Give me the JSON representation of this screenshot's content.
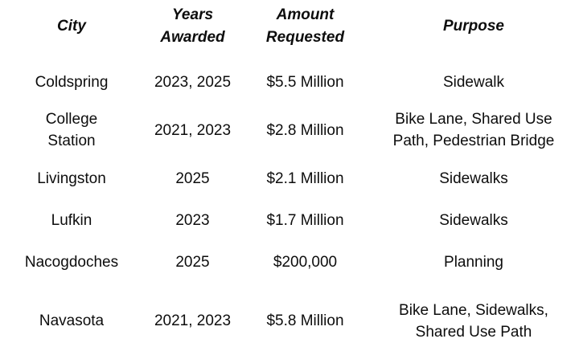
{
  "chart_data": {
    "type": "table",
    "title": "",
    "columns": [
      "City",
      "Years Awarded",
      "Amount Requested",
      "Purpose"
    ],
    "rows": [
      {
        "city": "Coldspring",
        "years_awarded": "2023, 2025",
        "amount_requested": "$5.5 Million",
        "purpose": "Sidewalk"
      },
      {
        "city": "College Station",
        "years_awarded": "2021, 2023",
        "amount_requested": "$2.8 Million",
        "purpose": "Bike Lane, Shared Use Path, Pedestrian Bridge"
      },
      {
        "city": "Livingston",
        "years_awarded": "2025",
        "amount_requested": "$2.1 Million",
        "purpose": "Sidewalks"
      },
      {
        "city": "Lufkin",
        "years_awarded": "2023",
        "amount_requested": "$1.7 Million",
        "purpose": "Sidewalks"
      },
      {
        "city": "Nacogdoches",
        "years_awarded": "2025",
        "amount_requested": "$200,000",
        "purpose": "Planning"
      },
      {
        "city": "Navasota",
        "years_awarded": "2021, 2023",
        "amount_requested": "$5.8 Million",
        "purpose": "Bike Lane, Sidewalks, Shared Use Path"
      }
    ],
    "layout_hints": {
      "borders": "none",
      "header_style": "bold italic",
      "alignment": "center",
      "text_color": "#0d0d0d",
      "background_color": "#ffffff"
    }
  },
  "table": {
    "headers": {
      "city": "City",
      "years": "Years\nAwarded",
      "amount": "Amount\nRequested",
      "purpose": "Purpose"
    },
    "rows": [
      {
        "city": "Coldspring",
        "years": "2023, 2025",
        "amount": "$5.5 Million",
        "purpose": "Sidewalk"
      },
      {
        "city": "College\nStation",
        "years": "2021, 2023",
        "amount": "$2.8 Million",
        "purpose": "Bike Lane, Shared Use\nPath, Pedestrian Bridge"
      },
      {
        "city": "Livingston",
        "years": "2025",
        "amount": "$2.1 Million",
        "purpose": "Sidewalks"
      },
      {
        "city": "Lufkin",
        "years": "2023",
        "amount": "$1.7 Million",
        "purpose": "Sidewalks"
      },
      {
        "city": "Nacogdoches",
        "years": "2025",
        "amount": "$200,000",
        "purpose": "Planning"
      },
      {
        "city": "Navasota",
        "years": "2021, 2023",
        "amount": "$5.8 Million",
        "purpose": "Bike Lane, Sidewalks,\nShared Use Path"
      }
    ]
  }
}
